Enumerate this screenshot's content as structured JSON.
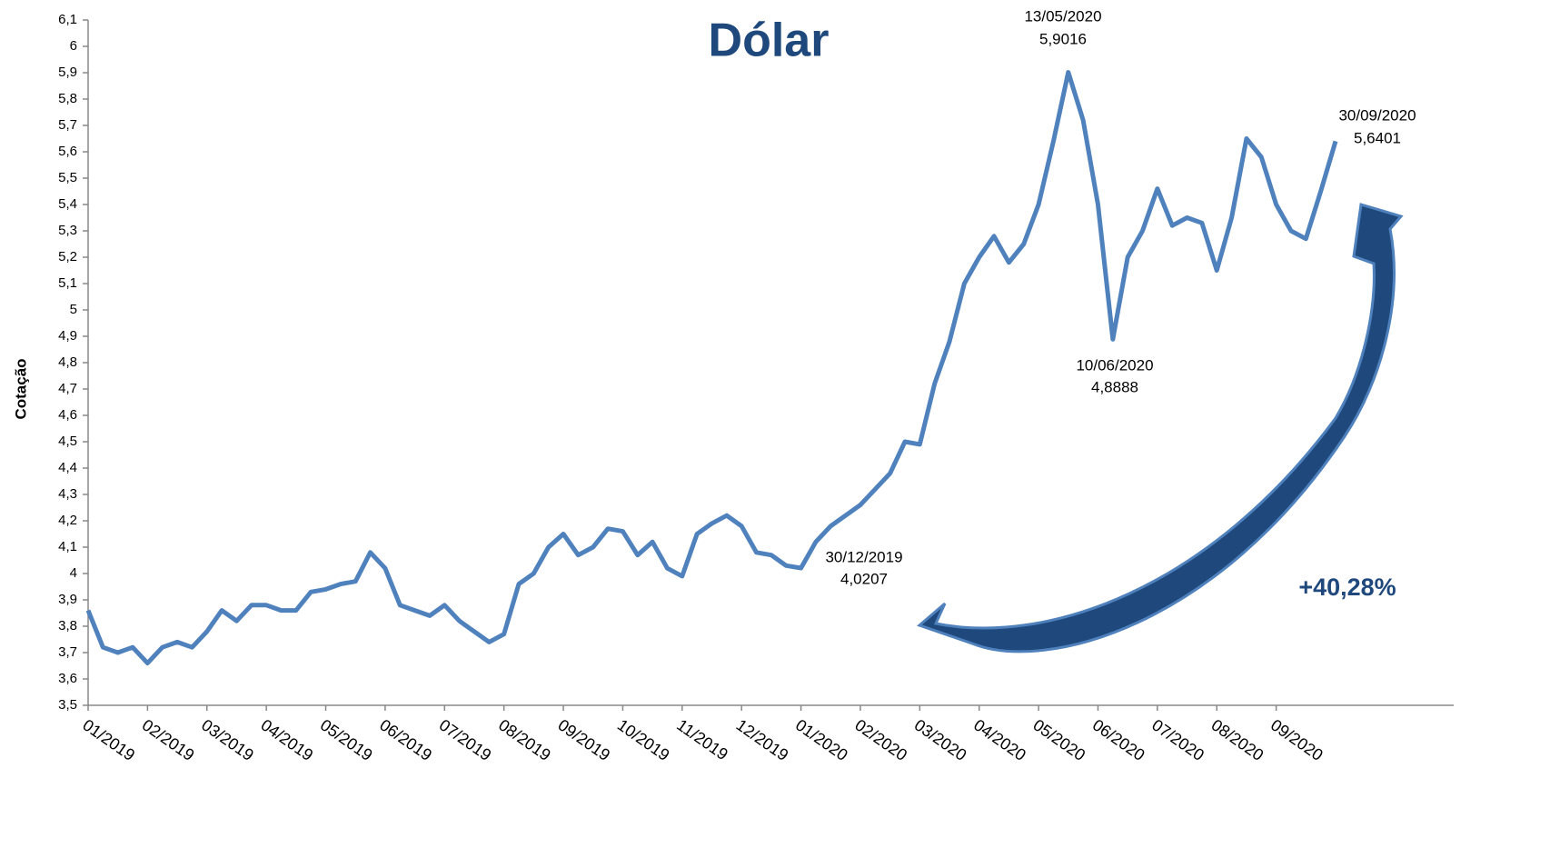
{
  "chart_data": {
    "type": "line",
    "title": "Dólar",
    "y_label": "Cotação",
    "categories": [
      "01/2019",
      null,
      null,
      null,
      "02/2019",
      null,
      null,
      null,
      "03/2019",
      null,
      null,
      null,
      "04/2019",
      null,
      null,
      null,
      "05/2019",
      null,
      null,
      null,
      "06/2019",
      null,
      null,
      null,
      "07/2019",
      null,
      null,
      null,
      "08/2019",
      null,
      null,
      null,
      "09/2019",
      null,
      null,
      null,
      "10/2019",
      null,
      null,
      null,
      "11/2019",
      null,
      null,
      null,
      "12/2019",
      null,
      null,
      null,
      "01/2020",
      null,
      null,
      null,
      "02/2020",
      null,
      null,
      null,
      "03/2020",
      null,
      null,
      null,
      "04/2020",
      null,
      null,
      null,
      "05/2020",
      null,
      null,
      null,
      "06/2020",
      null,
      null,
      null,
      "07/2020",
      null,
      null,
      null,
      "08/2020",
      null,
      null,
      null,
      "09/2020",
      null,
      null,
      null,
      null
    ],
    "series": [
      {
        "name": "Dólar",
        "color": "#4f81bd",
        "values": [
          3.86,
          3.72,
          3.7,
          3.72,
          3.66,
          3.72,
          3.74,
          3.72,
          3.78,
          3.86,
          3.82,
          3.88,
          3.88,
          3.86,
          3.86,
          3.93,
          3.94,
          3.96,
          3.97,
          4.08,
          4.02,
          3.88,
          3.86,
          3.84,
          3.88,
          3.82,
          3.78,
          3.74,
          3.77,
          3.96,
          4.0,
          4.1,
          4.15,
          4.07,
          4.1,
          4.17,
          4.16,
          4.07,
          4.12,
          4.02,
          3.99,
          4.15,
          4.19,
          4.22,
          4.18,
          4.08,
          4.07,
          4.03,
          4.0207,
          4.12,
          4.18,
          4.22,
          4.26,
          4.32,
          4.38,
          4.5,
          4.49,
          4.72,
          4.88,
          5.1,
          5.2,
          5.28,
          5.18,
          5.25,
          5.4,
          5.64,
          5.9016,
          5.72,
          5.4,
          4.8888,
          5.2,
          5.3,
          5.46,
          5.32,
          5.35,
          5.33,
          5.15,
          5.35,
          5.65,
          5.58,
          5.4,
          5.3,
          5.27,
          5.45,
          5.6401
        ],
        "value_labels": [
          null,
          null,
          null,
          null,
          null,
          null,
          null,
          null,
          null,
          null,
          null,
          null,
          null,
          null,
          null,
          null,
          null,
          null,
          null,
          null,
          null,
          null,
          null,
          null,
          null,
          null,
          null,
          null,
          null,
          null,
          null,
          null,
          null,
          null,
          null,
          null,
          null,
          null,
          null,
          null,
          null,
          null,
          null,
          null,
          null,
          null,
          null,
          null,
          "4,0207",
          null,
          null,
          null,
          null,
          null,
          null,
          null,
          null,
          null,
          null,
          null,
          null,
          null,
          null,
          null,
          null,
          null,
          "5,9016",
          null,
          null,
          "4,8888",
          null,
          null,
          null,
          null,
          null,
          null,
          null,
          null,
          null,
          null,
          null,
          null,
          null,
          null,
          "5,6401"
        ]
      }
    ],
    "annotations": [
      {
        "text": "13/05/2020"
      },
      {
        "text": "10/06/2020"
      },
      {
        "text": "30/12/2019"
      },
      {
        "text": "30/09/2020"
      },
      {
        "text": "+40,28%"
      }
    ],
    "ylim": [
      3.5,
      6.1
    ],
    "yticks": [
      {
        "value": 3.5,
        "label": "3,5"
      },
      {
        "value": 3.6,
        "label": "3,6"
      },
      {
        "value": 3.7,
        "label": "3,7"
      },
      {
        "value": 3.8,
        "label": "3,8"
      },
      {
        "value": 3.9,
        "label": "3,9"
      },
      {
        "value": 4,
        "label": "4"
      },
      {
        "value": 4.1,
        "label": "4,1"
      },
      {
        "value": 4.2,
        "label": "4,2"
      },
      {
        "value": 4.3,
        "label": "4,3"
      },
      {
        "value": 4.4,
        "label": "4,4"
      },
      {
        "value": 4.5,
        "label": "4,5"
      },
      {
        "value": 4.6,
        "label": "4,6"
      },
      {
        "value": 4.7,
        "label": "4,7"
      },
      {
        "value": 4.8,
        "label": "4,8"
      },
      {
        "value": 4.9,
        "label": "4,9"
      },
      {
        "value": 5,
        "label": "5"
      },
      {
        "value": 5.1,
        "label": "5,1"
      },
      {
        "value": 5.2,
        "label": "5,2"
      },
      {
        "value": 5.3,
        "label": "5,3"
      },
      {
        "value": 5.4,
        "label": "5,4"
      },
      {
        "value": 5.5,
        "label": "5,5"
      },
      {
        "value": 5.6,
        "label": "5,6"
      },
      {
        "value": 5.7,
        "label": "5,7"
      },
      {
        "value": 5.8,
        "label": "5,8"
      },
      {
        "value": 5.9,
        "label": "5,9"
      },
      {
        "value": 6,
        "label": "6"
      },
      {
        "value": 6.1,
        "label": "6,1"
      }
    ],
    "grid": false
  }
}
